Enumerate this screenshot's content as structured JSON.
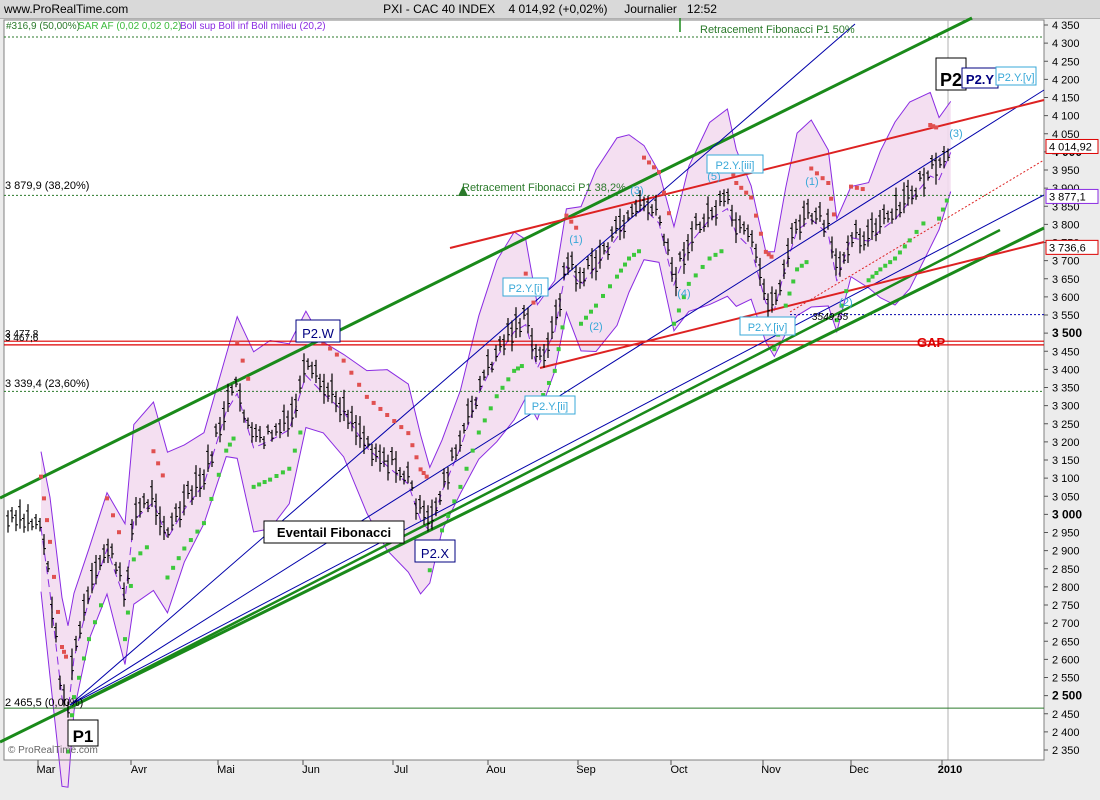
{
  "site": "www.ProRealTime.com",
  "header": {
    "symbol": "PXI - CAC 40 INDEX",
    "last": "4 014,92 (+0,02%)",
    "period": "Journalier",
    "time": "12:52"
  },
  "legend": [
    {
      "text": "#316,9 (50,00%)",
      "color": "#2b7a2b"
    },
    {
      "text": "SAR AF (0,02 0,02 0,2)",
      "color": "#3cba3c"
    },
    {
      "text": "Boll sup Boll inf Boll milieu (20,2)",
      "color": "#8a2be2"
    }
  ],
  "watermark": "© ProRealTime.com",
  "annotations": {
    "fib_100": "Retracement Fibonacci P1 50%",
    "fib_382": "Retracement Fibonacci P1 38,2%",
    "fib_lbl_50": "3 879,9 (38,20%)",
    "fib_lbl_477": "3 477,8",
    "fib_lbl_467": "3 467,6",
    "fib_lbl_236": "3 339,4 (23,60%)",
    "fib_lbl_0": "2 465,5 (0,00%)",
    "eventail": "Eventail Fibonacci",
    "gap": "GAP",
    "low_val": "3549,65",
    "P1": "P1",
    "P2": "P2",
    "P2W": "P2.W",
    "P2X": "P2.X",
    "P2Y": "P2.Y",
    "P2Yi": "P2.Y.[i]",
    "P2Yii": "P2.Y.[ii]",
    "P2Yiii": "P2.Y.[iii]",
    "P2Yiv": "P2.Y.[iv]",
    "P2Yv": "P2.Y.[v]",
    "w1": "(1)",
    "w2": "(2)",
    "w3": "(3)",
    "w4": "(4)",
    "w5": "(5)",
    "w1b": "(1)",
    "w2b": "(2)",
    "w3b": "(3)",
    "w3c": "(3)"
  },
  "chart_data": {
    "type": "ohlc",
    "ylim": [
      2330,
      4370
    ],
    "yticks": [
      2350,
      2400,
      2450,
      2500,
      2550,
      2600,
      2650,
      2700,
      2750,
      2800,
      2850,
      2900,
      2950,
      3000,
      3050,
      3100,
      3150,
      3200,
      3250,
      3300,
      3350,
      3400,
      3450,
      3500,
      3550,
      3600,
      3650,
      3700,
      3750,
      3800,
      3850,
      3900,
      3950,
      4000,
      4050,
      4100,
      4150,
      4200,
      4250,
      4300,
      4350
    ],
    "xticks": [
      "Mar",
      "Avr",
      "Mai",
      "Jun",
      "Jul",
      "Aou",
      "Sep",
      "Oct",
      "Nov",
      "Dec",
      "2010"
    ],
    "price_tags": [
      {
        "value": 4014.92,
        "label": "4 014,92",
        "color": "#dd0000"
      },
      {
        "value": 3877.1,
        "label": "3 877,1",
        "color": "#8a2be2"
      },
      {
        "value": 3736.6,
        "label": "3 736,6",
        "color": "#dd0000"
      }
    ],
    "fib_levels": [
      {
        "value": 4316.9,
        "color": "#2b7a2b"
      },
      {
        "value": 3879.9,
        "color": "#2b7a2b"
      },
      {
        "value": 3477.8,
        "color": "#dd0000"
      },
      {
        "value": 3467.6,
        "color": "#dd0000"
      },
      {
        "value": 3339.4,
        "color": "#2b7a2b"
      },
      {
        "value": 2465.5,
        "color": "#2b7a2b"
      }
    ],
    "price_path": [
      [
        "03-02",
        2980
      ],
      [
        "03-05",
        2800
      ],
      [
        "03-09",
        2510
      ],
      [
        "03-11",
        2470
      ],
      [
        "03-13",
        2620
      ],
      [
        "03-18",
        2780
      ],
      [
        "03-24",
        2920
      ],
      [
        "03-30",
        2780
      ],
      [
        "04-02",
        3000
      ],
      [
        "04-09",
        3050
      ],
      [
        "04-14",
        2950
      ],
      [
        "04-20",
        3030
      ],
      [
        "04-27",
        3100
      ],
      [
        "05-04",
        3300
      ],
      [
        "05-08",
        3350
      ],
      [
        "05-14",
        3200
      ],
      [
        "05-20",
        3220
      ],
      [
        "05-27",
        3250
      ],
      [
        "06-02",
        3400
      ],
      [
        "06-08",
        3350
      ],
      [
        "06-15",
        3300
      ],
      [
        "06-23",
        3200
      ],
      [
        "06-30",
        3150
      ],
      [
        "07-06",
        3100
      ],
      [
        "07-10",
        3000
      ],
      [
        "07-13",
        2970
      ],
      [
        "07-17",
        3080
      ],
      [
        "07-23",
        3200
      ],
      [
        "07-29",
        3350
      ],
      [
        "08-04",
        3450
      ],
      [
        "08-10",
        3520
      ],
      [
        "08-14",
        3540
      ],
      [
        "08-18",
        3420
      ],
      [
        "08-24",
        3520
      ],
      [
        "08-28",
        3700
      ],
      [
        "09-02",
        3650
      ],
      [
        "09-07",
        3700
      ],
      [
        "09-14",
        3780
      ],
      [
        "09-18",
        3830
      ],
      [
        "09-23",
        3860
      ],
      [
        "09-28",
        3820
      ],
      [
        "10-02",
        3650
      ],
      [
        "10-07",
        3760
      ],
      [
        "10-14",
        3830
      ],
      [
        "10-20",
        3860
      ],
      [
        "10-23",
        3790
      ],
      [
        "10-28",
        3750
      ],
      [
        "11-02",
        3600
      ],
      [
        "11-05",
        3580
      ],
      [
        "11-09",
        3700
      ],
      [
        "11-13",
        3800
      ],
      [
        "11-18",
        3830
      ],
      [
        "11-24",
        3790
      ],
      [
        "11-27",
        3660
      ],
      [
        "12-01",
        3780
      ],
      [
        "12-07",
        3770
      ],
      [
        "12-11",
        3800
      ],
      [
        "12-16",
        3830
      ],
      [
        "12-21",
        3880
      ],
      [
        "12-28",
        3950
      ],
      [
        "12-31",
        3940
      ],
      [
        "01-04",
        4014.92
      ]
    ]
  }
}
